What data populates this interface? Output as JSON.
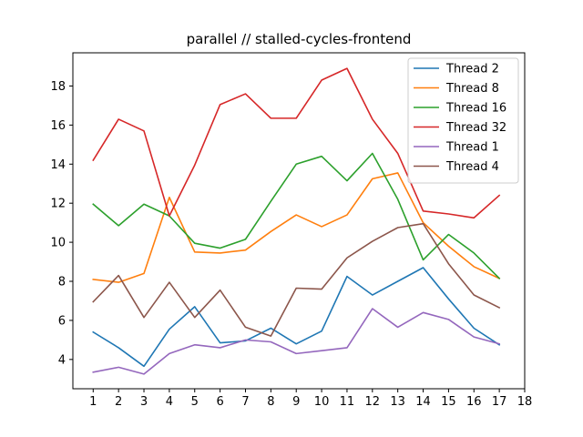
{
  "chart_data": {
    "type": "line",
    "title": "parallel // stalled-cycles-frontend",
    "xlabel": "",
    "ylabel": "",
    "x": [
      1,
      2,
      3,
      4,
      5,
      6,
      7,
      8,
      9,
      10,
      11,
      12,
      13,
      14,
      15,
      16,
      17
    ],
    "x_ticks": [
      "1",
      "2",
      "3",
      "4",
      "5",
      "6",
      "7",
      "8",
      "9",
      "10",
      "11",
      "12",
      "13",
      "14",
      "15",
      "16",
      "17",
      "18"
    ],
    "y_ticks": [
      "4",
      "6",
      "8",
      "10",
      "12",
      "14",
      "16",
      "18"
    ],
    "xlim": [
      0.2,
      18.0
    ],
    "ylim": [
      2.5,
      19.7
    ],
    "legend_position": "top-right",
    "grid": false,
    "series": [
      {
        "name": "Thread 2",
        "color": "#1f77b4",
        "values": [
          5.4,
          4.6,
          3.65,
          5.55,
          6.7,
          4.85,
          4.95,
          5.6,
          4.8,
          5.45,
          8.25,
          7.3,
          8.0,
          8.7,
          7.1,
          5.6,
          4.75
        ]
      },
      {
        "name": "Thread 8",
        "color": "#ff7f0e",
        "values": [
          8.1,
          7.95,
          8.4,
          12.3,
          9.5,
          9.45,
          9.6,
          10.55,
          11.4,
          10.8,
          11.4,
          13.25,
          13.55,
          11.0,
          9.8,
          8.75,
          8.15
        ]
      },
      {
        "name": "Thread 16",
        "color": "#2ca02c",
        "values": [
          11.95,
          10.85,
          11.95,
          11.35,
          9.95,
          9.7,
          10.15,
          12.1,
          14.0,
          14.4,
          13.15,
          14.55,
          12.2,
          9.1,
          10.4,
          9.45,
          8.15
        ]
      },
      {
        "name": "Thread 32",
        "color": "#d62728",
        "values": [
          14.2,
          16.3,
          15.7,
          11.35,
          13.95,
          17.05,
          17.6,
          16.35,
          16.35,
          18.3,
          18.9,
          16.3,
          14.55,
          11.6,
          11.45,
          11.25,
          12.4
        ]
      },
      {
        "name": "Thread 1",
        "color": "#9467bd",
        "values": [
          3.35,
          3.6,
          3.25,
          4.3,
          4.75,
          4.6,
          5.0,
          4.9,
          4.3,
          4.45,
          4.6,
          6.6,
          5.65,
          6.4,
          6.05,
          5.15,
          4.8
        ]
      },
      {
        "name": "Thread 4",
        "color": "#8c564b",
        "values": [
          6.95,
          8.3,
          6.15,
          7.95,
          6.15,
          7.55,
          5.65,
          5.2,
          7.65,
          7.6,
          9.2,
          10.05,
          10.75,
          10.95,
          8.9,
          7.3,
          6.65
        ]
      }
    ]
  }
}
